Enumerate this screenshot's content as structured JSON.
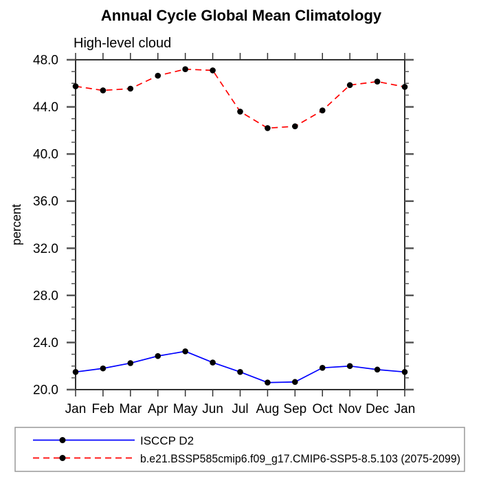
{
  "chart_data": {
    "type": "line",
    "title": "Annual Cycle Global Mean Climatology",
    "subtitle": "High-level cloud",
    "ylabel": "percent",
    "xlabel": "",
    "categories": [
      "Jan",
      "Feb",
      "Mar",
      "Apr",
      "May",
      "Jun",
      "Jul",
      "Aug",
      "Sep",
      "Oct",
      "Nov",
      "Dec",
      "Jan"
    ],
    "series": [
      {
        "name": "ISCCP D2",
        "color": "#0000ff",
        "line_style": "solid",
        "marker": "filled-circle",
        "marker_color": "#000000",
        "values": [
          21.5,
          21.8,
          22.25,
          22.85,
          23.25,
          22.3,
          21.5,
          20.6,
          20.65,
          21.85,
          22.0,
          21.7,
          21.5
        ]
      },
      {
        "name": "b.e21.BSSP585cmip6.f09_g17.CMIP6-SSP5-8.5.103 (2075-2099)",
        "color": "#ff0000",
        "line_style": "dashed",
        "marker": "filled-circle",
        "marker_color": "#000000",
        "values": [
          45.75,
          45.4,
          45.55,
          46.65,
          47.2,
          47.1,
          43.6,
          42.2,
          42.35,
          43.7,
          45.85,
          46.15,
          45.7
        ]
      }
    ],
    "ylim": [
      20,
      48
    ],
    "ytick_major": [
      20,
      24,
      28,
      32,
      36,
      40,
      44,
      48
    ],
    "ytick_labels": [
      "20.0",
      "24.0",
      "28.0",
      "32.0",
      "36.0",
      "40.0",
      "44.0",
      "48.0"
    ],
    "ytick_minor_step": 1,
    "grid": false,
    "legend_position": "bottom-left-box",
    "colors": {
      "frame": "#1a1a1a",
      "major_tick": "#555555",
      "minor_tick": "#555555",
      "month_tick": "#333333",
      "text": "#000000",
      "legend_border": "#999999",
      "background": "#ffffff"
    }
  }
}
